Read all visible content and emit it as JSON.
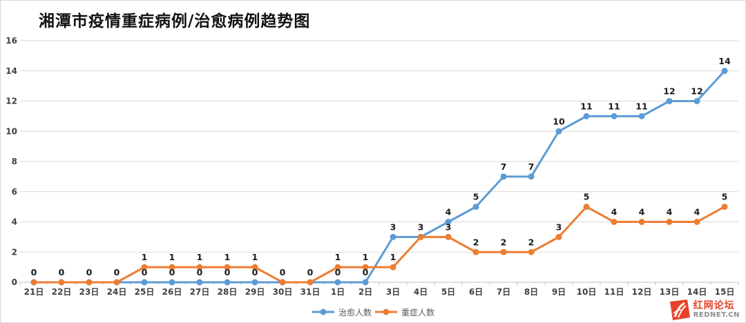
{
  "chart_data": {
    "type": "line",
    "title": "湘潭市疫情重症病例/治愈病例趋势图",
    "categories": [
      "21日",
      "22日",
      "23日",
      "24日",
      "25日",
      "26日",
      "27日",
      "28日",
      "29日",
      "30日",
      "31日",
      "1日",
      "2日",
      "3日",
      "4日",
      "5日",
      "6日",
      "7日",
      "8日",
      "9日",
      "10日",
      "11日",
      "12日",
      "13日",
      "14日",
      "15日"
    ],
    "series": [
      {
        "name": "治愈人数",
        "color": "#5B9BD5",
        "values": [
          0,
          0,
          0,
          0,
          0,
          0,
          0,
          0,
          0,
          0,
          0,
          0,
          0,
          3,
          3,
          4,
          5,
          7,
          7,
          10,
          11,
          11,
          11,
          12,
          12,
          14
        ]
      },
      {
        "name": "重症人数",
        "color": "#ED7D31",
        "values": [
          0,
          0,
          0,
          0,
          1,
          1,
          1,
          1,
          1,
          0,
          0,
          1,
          1,
          1,
          3,
          3,
          2,
          2,
          2,
          3,
          5,
          4,
          4,
          4,
          4,
          5
        ]
      }
    ],
    "ylim": [
      0,
      16
    ],
    "ytick_step": 2,
    "ytick_labels": [
      "0",
      "2",
      "4",
      "6",
      "8",
      "10",
      "12",
      "14",
      "16"
    ],
    "grid": true,
    "data_labels": true,
    "legend_position": "bottom"
  },
  "colors": {
    "gridline": "#d9d9d9",
    "axis_line": "#bfbfbf",
    "tick": "#bfbfbf",
    "axis_text": "#404040",
    "data_label_text": "#1a1a1a",
    "title_text": "#111111",
    "legend_text": "#595959",
    "watermark_red": "#e8402a",
    "watermark_gray": "#8c8c8c"
  },
  "watermark": {
    "line1": "红网论坛",
    "line2": "REDNET.CN"
  }
}
